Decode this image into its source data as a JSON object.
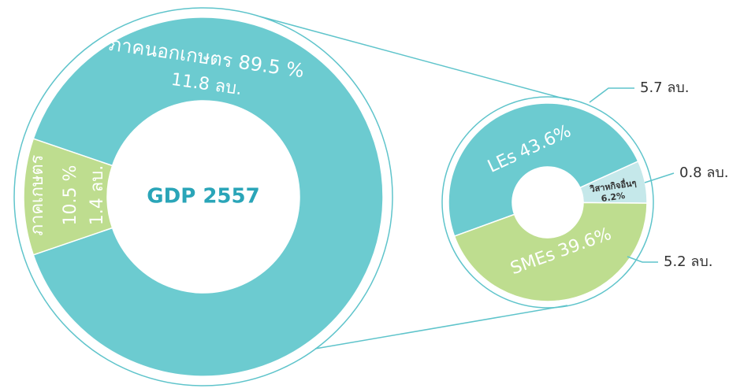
{
  "chart_data": [
    {
      "type": "pie",
      "center_label": "GDP 2557",
      "categories": [
        "ภาคนอกเกษตร",
        "ภาคเกษตร"
      ],
      "values": [
        89.5,
        10.5
      ],
      "value_labels": [
        "89.5 %",
        "10.5 %"
      ],
      "amount_labels": [
        "11.8 ลบ.",
        "1.4 ลบ."
      ],
      "colors": [
        "#6ccbd0",
        "#bedd8f"
      ]
    },
    {
      "type": "pie",
      "categories": [
        "LEs",
        "วิสาหกิจอื่นๆ",
        "SMEs"
      ],
      "values": [
        43.6,
        6.2,
        39.6
      ],
      "value_labels": [
        "43.6%",
        "6.2%",
        "39.6%"
      ],
      "amount_labels": [
        "5.7 ลบ.",
        "0.8 ลบ.",
        "5.2 ลบ."
      ],
      "colors": [
        "#6ccbd0",
        "#c5e8ea",
        "#bedd8f"
      ]
    }
  ]
}
